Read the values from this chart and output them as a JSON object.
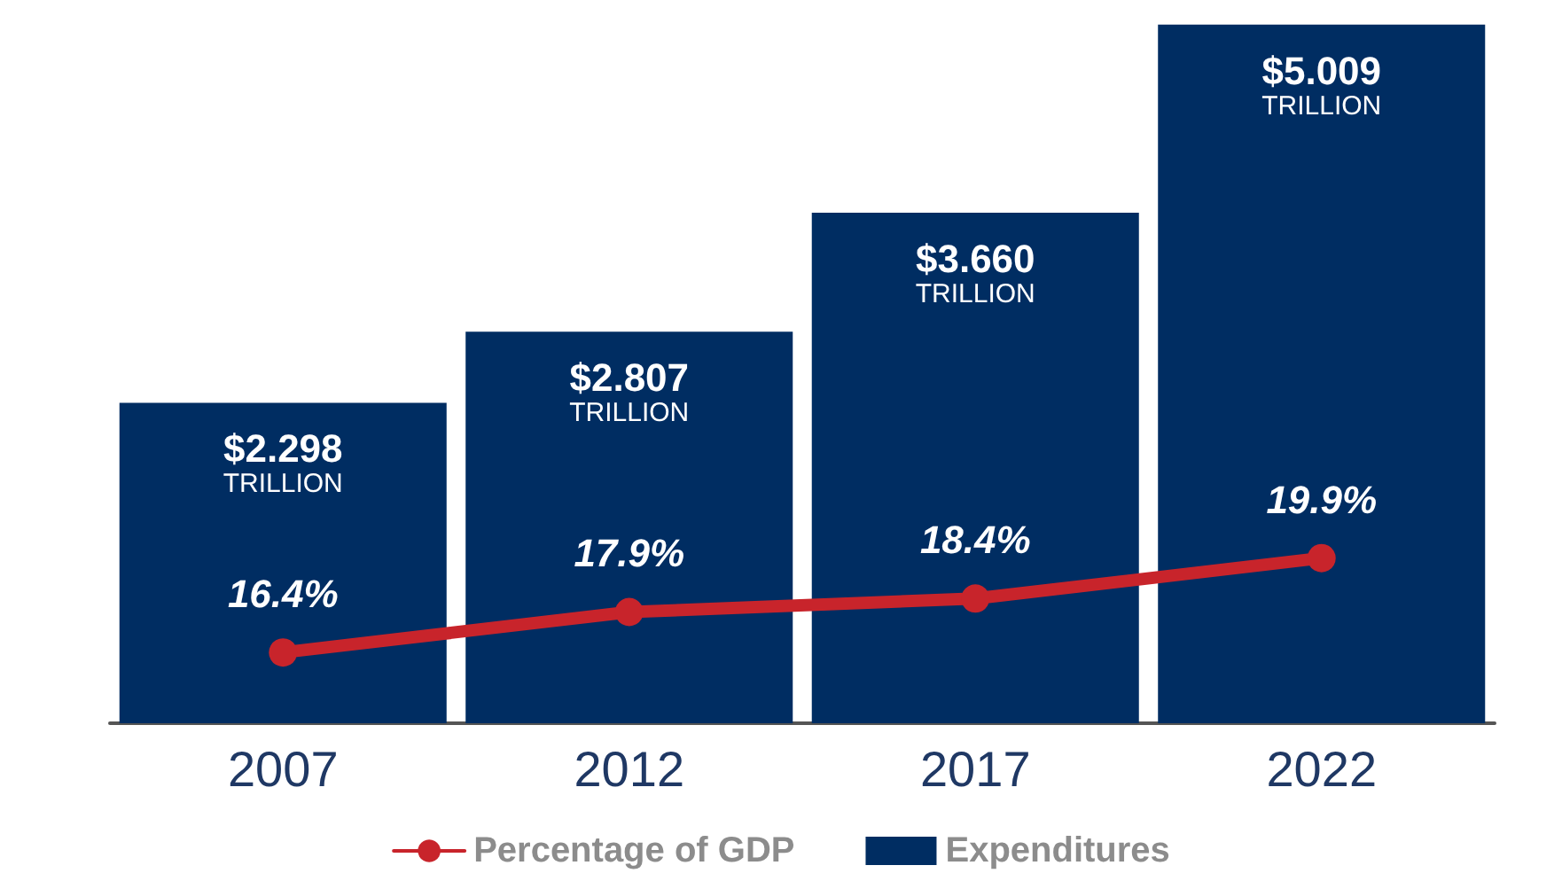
{
  "chart_data": {
    "type": "bar",
    "categories": [
      "2007",
      "2012",
      "2017",
      "2022"
    ],
    "series": [
      {
        "name": "Percentage of GDP",
        "type": "line",
        "axis": "y2",
        "color": "#c8242b",
        "values": [
          16.4,
          17.9,
          18.4,
          19.9
        ],
        "value_labels": [
          "16.4%",
          "17.9%",
          "18.4%",
          "19.9%"
        ]
      },
      {
        "name": "Expenditures",
        "color": "#002d62",
        "values": [
          2.298,
          2.807,
          3.66,
          5.009
        ],
        "value_labels": [
          "$2.298\nTRILLION",
          "$2.807\nTRILLION",
          "$3.660\nTRILLION",
          "$5.009\nTRILLION"
        ]
      }
    ],
    "tick_labels": "x",
    "grid": false,
    "legend": "bottom",
    "marker": "circle",
    "line_style": "solid"
  }
}
